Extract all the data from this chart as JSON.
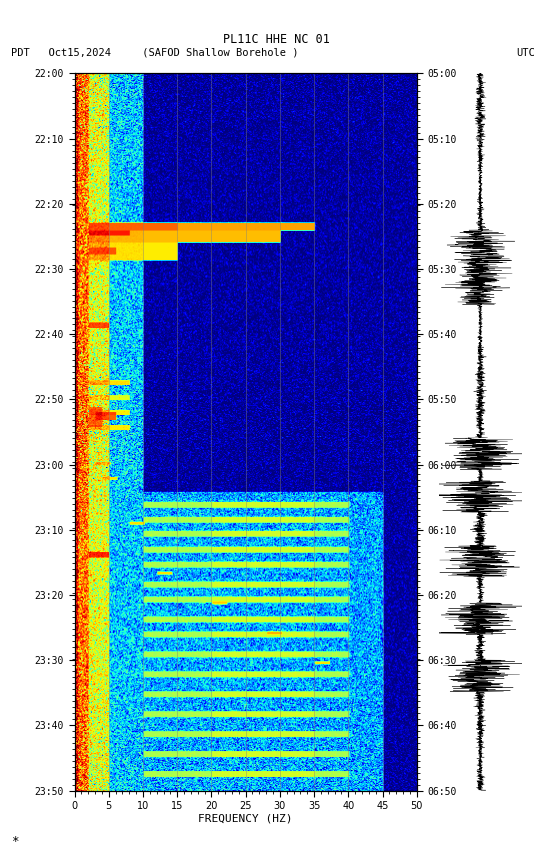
{
  "title_line1": "PL11C HHE NC 01",
  "title_line2_left": "PDT   Oct15,2024     (SAFOD Shallow Borehole )",
  "title_line2_right": "UTC",
  "xlabel": "FREQUENCY (HZ)",
  "freq_min": 0,
  "freq_max": 50,
  "time_label_left": [
    "22:00",
    "22:10",
    "22:20",
    "22:30",
    "22:40",
    "22:50",
    "23:00",
    "23:10",
    "23:20",
    "23:30",
    "23:40",
    "23:50"
  ],
  "time_label_right": [
    "05:00",
    "05:10",
    "05:20",
    "05:30",
    "05:40",
    "05:50",
    "06:00",
    "06:10",
    "06:20",
    "06:30",
    "06:40",
    "06:50"
  ],
  "n_time_steps": 720,
  "n_freq_bins": 500,
  "background_color": "#ffffff",
  "fig_width": 5.52,
  "fig_height": 8.64,
  "dpi": 100,
  "vline_color": "#808080",
  "vline_alpha": 0.6
}
